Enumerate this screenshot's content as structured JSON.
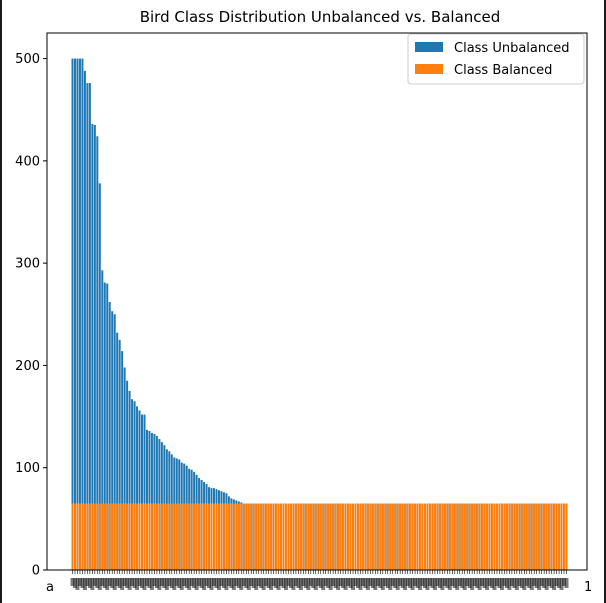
{
  "chart_data": {
    "type": "bar",
    "title": "Bird Class Distribution Unbalanced vs. Balanced",
    "xlabel": "",
    "ylabel": "",
    "ylim": [
      0,
      525
    ],
    "yticks": [
      0,
      100,
      200,
      300,
      400,
      500
    ],
    "grid": false,
    "legend_position": "top-right",
    "x_tick_labels_overlapping": true,
    "x_tick_labels_visible": [
      "a",
      "1"
    ],
    "colors": {
      "unbalanced": "#1f77b4",
      "balanced": "#ff7f0e"
    },
    "category_count": 200,
    "series": [
      {
        "name": "Class Unbalanced",
        "values": [
          500,
          500,
          500,
          500,
          500,
          488,
          476,
          476,
          436,
          435,
          424,
          378,
          293,
          281,
          280,
          262,
          253,
          250,
          232,
          225,
          214,
          198,
          185,
          175,
          167,
          165,
          160,
          156,
          152,
          152,
          137,
          136,
          134,
          133,
          131,
          128,
          125,
          122,
          118,
          116,
          113,
          110,
          109,
          108,
          105,
          104,
          102,
          99,
          98,
          96,
          93,
          90,
          88,
          86,
          84,
          81,
          80,
          80,
          79,
          78,
          77,
          76,
          75,
          72,
          70,
          69,
          68,
          67,
          66,
          65,
          65,
          65,
          65,
          65,
          65,
          65,
          65,
          65,
          65,
          65,
          65,
          65,
          65,
          65,
          65,
          65,
          65,
          65,
          65,
          65,
          65,
          65,
          65,
          65,
          65,
          65,
          65,
          65,
          65,
          65,
          65,
          65,
          65,
          65,
          65,
          65,
          65,
          65,
          65,
          65,
          65,
          65,
          65,
          65,
          65,
          65,
          65,
          65,
          65,
          65,
          65,
          65,
          65,
          65,
          65,
          65,
          65,
          65,
          65,
          65,
          65,
          65,
          65,
          65,
          65,
          65,
          65,
          65,
          65,
          65,
          65,
          65,
          65,
          65,
          65,
          65,
          65,
          65,
          65,
          65,
          65,
          65,
          65,
          65,
          65,
          65,
          65,
          65,
          65,
          65,
          65,
          65,
          65,
          65,
          65,
          65,
          65,
          65,
          65,
          65,
          65,
          65,
          65,
          65,
          65,
          65,
          65,
          65,
          65,
          65,
          65,
          65,
          65,
          65,
          65,
          65,
          65,
          65,
          65,
          65,
          65,
          65,
          65,
          65,
          65,
          65,
          65,
          65,
          65,
          65
        ]
      },
      {
        "name": "Class Balanced",
        "value_all": 65
      }
    ]
  }
}
